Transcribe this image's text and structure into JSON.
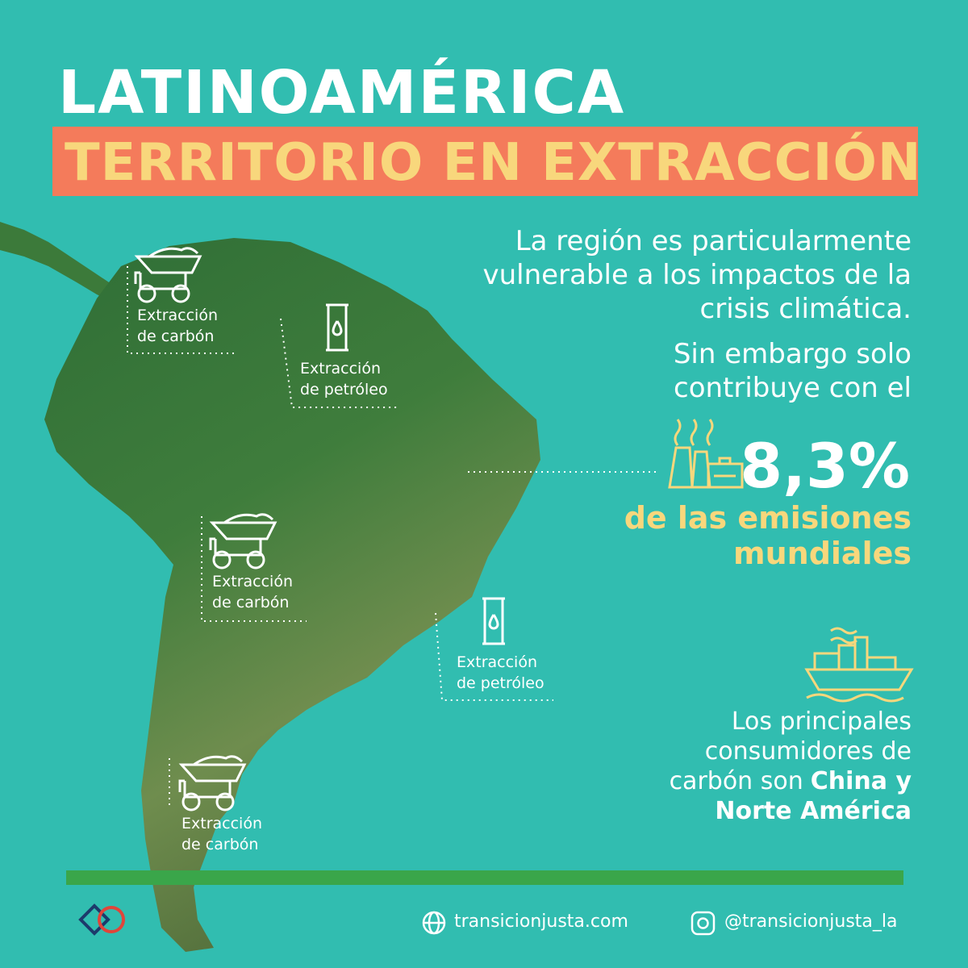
{
  "header": {
    "title": "LATINOAMÉRICA",
    "subtitle": "TERRITORIO EN EXTRACCIÓN"
  },
  "intro": {
    "lines": [
      "La región es particularmente",
      "vulnerable a los impactos de la",
      "crisis climática."
    ]
  },
  "contribution": {
    "lines": [
      "Sin embargo solo",
      "contribuye con el"
    ],
    "figure": "8,3%",
    "caption": [
      "de las emisiones",
      "mundiales"
    ]
  },
  "consumers": {
    "lines": [
      "Los principales",
      "consumidores de",
      "carbón son"
    ],
    "highlight": [
      "China y",
      "Norte América"
    ]
  },
  "map_labels": [
    {
      "kind": "coal",
      "lines": [
        "Extracción",
        "de carbón"
      ]
    },
    {
      "kind": "oil",
      "lines": [
        "Extracción",
        "de petróleo"
      ]
    },
    {
      "kind": "coal",
      "lines": [
        "Extracción",
        "de carbón"
      ]
    },
    {
      "kind": "oil",
      "lines": [
        "Extracción",
        "de petróleo"
      ]
    },
    {
      "kind": "coal",
      "lines": [
        "Extracción",
        "de carbón"
      ]
    }
  ],
  "footer": {
    "website": "transicionjusta.com",
    "instagram": "@transicionjusta_la"
  }
}
